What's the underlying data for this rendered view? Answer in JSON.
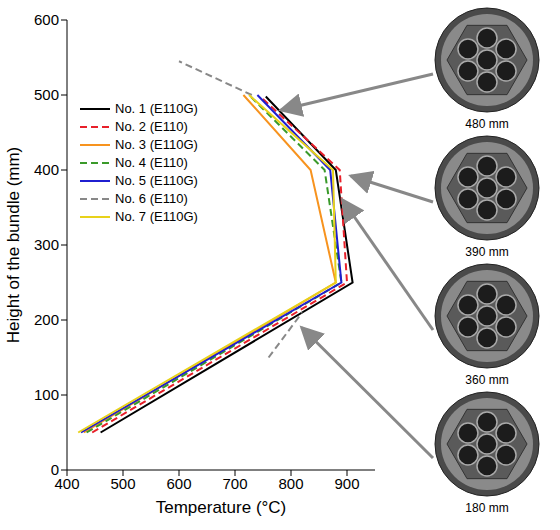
{
  "chart_data": {
    "type": "line",
    "x_label": "Temperature (°C)",
    "y_label": "Height of the bundle (mm)",
    "xlim": [
      400,
      950
    ],
    "xticks": [
      400,
      500,
      600,
      700,
      800,
      900
    ],
    "ylim": [
      0,
      600
    ],
    "yticks": [
      0,
      100,
      200,
      300,
      400,
      500,
      600
    ],
    "grid": false,
    "legend": "top left",
    "series": [
      {
        "name": "No. 1 (E110G)",
        "color": "#000000",
        "line_style": "solid",
        "x": [
          460,
          910,
          880,
          755
        ],
        "y": [
          50,
          250,
          400,
          498
        ]
      },
      {
        "name": "No. 2 (E110)",
        "color": "#e8202a",
        "line_style": "dashed",
        "x": [
          445,
          900,
          887,
          745
        ],
        "y": [
          50,
          250,
          400,
          498
        ]
      },
      {
        "name": "No. 3 (E110G)",
        "color": "#f7931e",
        "line_style": "solid",
        "x": [
          430,
          880,
          835,
          715
        ],
        "y": [
          50,
          250,
          400,
          500
        ]
      },
      {
        "name": "No. 4 (E110)",
        "color": "#3a9a2a",
        "line_style": "dashed",
        "x": [
          435,
          890,
          860,
          725
        ],
        "y": [
          50,
          250,
          400,
          500
        ]
      },
      {
        "name": "No. 5 (E110G)",
        "color": "#1f1fd0",
        "line_style": "solid",
        "x": [
          425,
          890,
          870,
          740
        ],
        "y": [
          50,
          250,
          400,
          500
        ]
      },
      {
        "name": "No. 6 (E110)",
        "color": "#888888",
        "line_style": "dashed",
        "x": [
          760,
          820,
          null,
          730,
          600
        ],
        "y": [
          150,
          210,
          null,
          500,
          545
        ]
      },
      {
        "name": "No. 7 (E110G)",
        "color": "#e8d21a",
        "line_style": "solid",
        "x": [
          420,
          880,
          875,
          725
        ],
        "y": [
          50,
          250,
          400,
          500
        ]
      }
    ]
  },
  "photos": [
    {
      "label": "480 mm"
    },
    {
      "label": "390 mm"
    },
    {
      "label": "360 mm"
    },
    {
      "label": "180 mm"
    }
  ]
}
